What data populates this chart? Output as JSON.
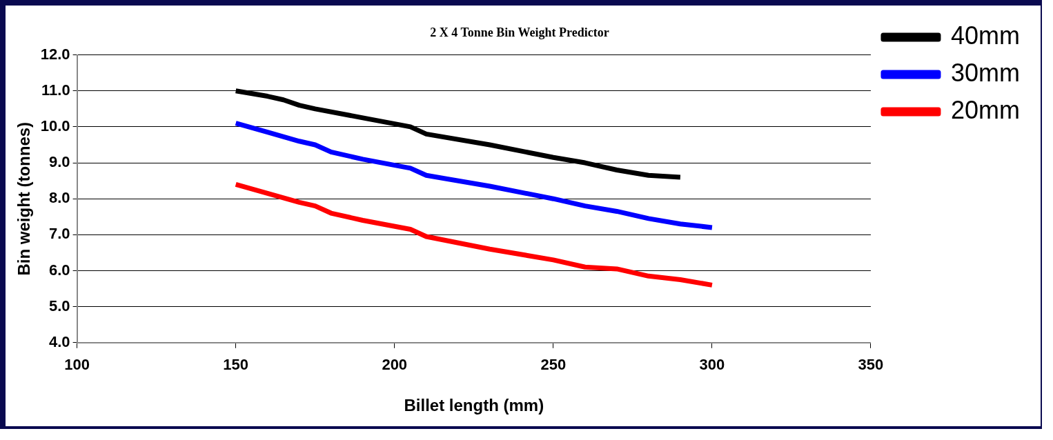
{
  "chart_data": {
    "type": "line",
    "title": "2 X 4 Tonne Bin Weight Predictor",
    "xlabel": "Billet length (mm)",
    "ylabel": "Bin weight (tonnes)",
    "xlim": [
      100,
      350
    ],
    "xticks": [
      100,
      150,
      200,
      250,
      300,
      350
    ],
    "ylim": [
      4,
      12
    ],
    "yticks": [
      {
        "value": 4,
        "label": "4.0"
      },
      {
        "value": 5,
        "label": "5.0"
      },
      {
        "value": 6,
        "label": "6.0"
      },
      {
        "value": 7,
        "label": "7.0"
      },
      {
        "value": 8,
        "label": "8.0"
      },
      {
        "value": 9,
        "label": "9.0"
      },
      {
        "value": 10,
        "label": "10.0"
      },
      {
        "value": 11,
        "label": "11.0"
      },
      {
        "value": 12,
        "label": "12.0"
      }
    ],
    "grid": "y",
    "legend": "top right",
    "marker": "none",
    "line_style": "solid",
    "series": [
      {
        "name": "40mm",
        "color": "#000000",
        "x": [
          150,
          160,
          165,
          170,
          175,
          190,
          205,
          210,
          230,
          250,
          260,
          270,
          280,
          290
        ],
        "values": [
          11.0,
          10.85,
          10.75,
          10.6,
          10.5,
          10.25,
          10.0,
          9.8,
          9.5,
          9.15,
          9.0,
          8.8,
          8.65,
          8.6
        ]
      },
      {
        "name": "30mm",
        "color": "#0000ff",
        "x": [
          150,
          160,
          170,
          175,
          180,
          190,
          205,
          210,
          230,
          250,
          260,
          270,
          280,
          290,
          300
        ],
        "values": [
          10.1,
          9.85,
          9.6,
          9.5,
          9.3,
          9.1,
          8.85,
          8.65,
          8.35,
          8.0,
          7.8,
          7.65,
          7.45,
          7.3,
          7.2
        ]
      },
      {
        "name": "20mm",
        "color": "#ff0000",
        "x": [
          150,
          160,
          170,
          175,
          180,
          190,
          205,
          210,
          230,
          250,
          260,
          270,
          280,
          290,
          300
        ],
        "values": [
          8.4,
          8.15,
          7.9,
          7.8,
          7.6,
          7.4,
          7.15,
          6.95,
          6.6,
          6.3,
          6.1,
          6.05,
          5.85,
          5.75,
          5.6
        ]
      }
    ]
  }
}
